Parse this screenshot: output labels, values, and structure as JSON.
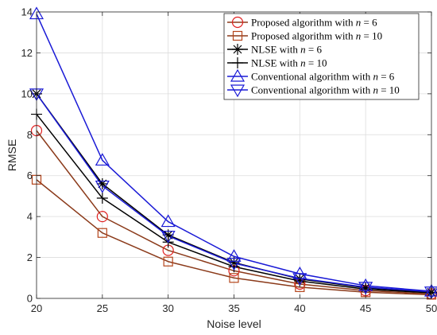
{
  "chart_data": {
    "type": "line",
    "title": "",
    "xlabel": "Noise level",
    "ylabel": "RMSE",
    "xlim": [
      20,
      50
    ],
    "ylim": [
      0,
      14
    ],
    "x": [
      20,
      25,
      30,
      35,
      40,
      45,
      50
    ],
    "xticks": [
      "20",
      "25",
      "30",
      "35",
      "40",
      "45",
      "50"
    ],
    "yticks": [
      "0",
      "2",
      "4",
      "6",
      "8",
      "10",
      "12",
      "14"
    ],
    "grid": true,
    "legend_position": "top-right",
    "series": [
      {
        "name": "Proposed algorithm with n = 6",
        "legend_prefix": "Proposed algorithm with ",
        "legend_var": "n",
        "legend_suffix": " = 6",
        "color": "#8B3A1A",
        "marker_color": "#E02020",
        "marker": "circle",
        "values": [
          8.2,
          4.0,
          2.35,
          1.35,
          0.7,
          0.38,
          0.22
        ]
      },
      {
        "name": "Proposed algorithm with n = 10",
        "legend_prefix": "Proposed algorithm with ",
        "legend_var": "n",
        "legend_suffix": " = 10",
        "color": "#8B3A1A",
        "marker_color": "#B5451B",
        "marker": "square",
        "values": [
          5.8,
          3.2,
          1.8,
          1.0,
          0.55,
          0.3,
          0.18
        ]
      },
      {
        "name": "NLSE with n = 6",
        "legend_prefix": "NLSE with ",
        "legend_var": "n",
        "legend_suffix": " = 6",
        "color": "#000000",
        "marker_color": "#000000",
        "marker": "asterisk",
        "values": [
          10.0,
          5.6,
          3.1,
          1.75,
          0.95,
          0.52,
          0.3
        ]
      },
      {
        "name": "NLSE with n = 10",
        "legend_prefix": "NLSE with ",
        "legend_var": "n",
        "legend_suffix": " = 10",
        "color": "#000000",
        "marker_color": "#000000",
        "marker": "plus",
        "values": [
          9.0,
          4.9,
          2.75,
          1.55,
          0.85,
          0.45,
          0.27
        ]
      },
      {
        "name": "Conventional algorithm with n = 6",
        "legend_prefix": "Conventional algorithm with ",
        "legend_var": "n",
        "legend_suffix": " = 6",
        "color": "#1A1AD6",
        "marker_color": "#1A1AD6",
        "marker": "triangle-up",
        "values": [
          13.9,
          6.75,
          3.75,
          2.05,
          1.2,
          0.62,
          0.35
        ]
      },
      {
        "name": "Conventional algorithm with n = 10",
        "legend_prefix": "Conventional algorithm with ",
        "legend_var": "n",
        "legend_suffix": " = 10",
        "color": "#1A1AD6",
        "marker_color": "#1A1AD6",
        "marker": "triangle-down",
        "values": [
          10.0,
          5.5,
          3.05,
          1.72,
          0.98,
          0.55,
          0.32
        ]
      }
    ]
  }
}
